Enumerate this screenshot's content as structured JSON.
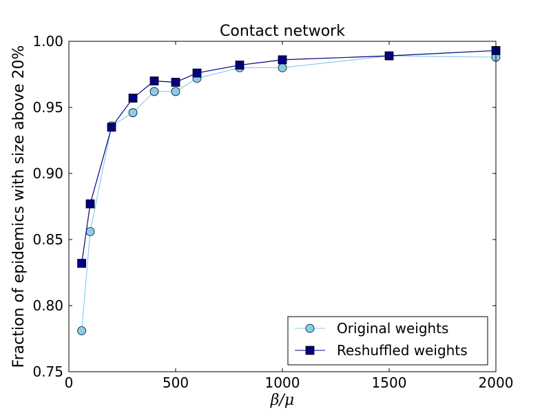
{
  "chart_data": {
    "type": "line",
    "title": "Contact network",
    "xlabel": "β/μ",
    "ylabel": "Fraction of epidemics with size above 20%",
    "xlim": [
      0,
      2000
    ],
    "ylim": [
      0.75,
      1.0
    ],
    "xticks": [
      0,
      500,
      1000,
      1500,
      2000
    ],
    "yticks": [
      0.75,
      0.8,
      0.85,
      0.9,
      0.95,
      1.0
    ],
    "xtick_labels": [
      "0",
      "500",
      "1000",
      "1500",
      "2000"
    ],
    "ytick_labels": [
      "0.75",
      "0.80",
      "0.85",
      "0.90",
      "0.95",
      "1.00"
    ],
    "grid": false,
    "legend_position": "bottom-right",
    "series": [
      {
        "name": "Original weights",
        "color": "#87ceeb",
        "marker": "circle",
        "x": [
          60,
          100,
          200,
          300,
          400,
          500,
          600,
          800,
          1000,
          1500,
          2000
        ],
        "y": [
          0.781,
          0.856,
          0.936,
          0.946,
          0.962,
          0.962,
          0.972,
          0.98,
          0.98,
          0.989,
          0.988
        ]
      },
      {
        "name": "Reshuffled weights",
        "color": "#000080",
        "marker": "square",
        "x": [
          60,
          100,
          200,
          300,
          400,
          500,
          600,
          800,
          1000,
          1500,
          2000
        ],
        "y": [
          0.832,
          0.877,
          0.935,
          0.957,
          0.97,
          0.969,
          0.976,
          0.982,
          0.986,
          0.989,
          0.993
        ]
      }
    ]
  }
}
